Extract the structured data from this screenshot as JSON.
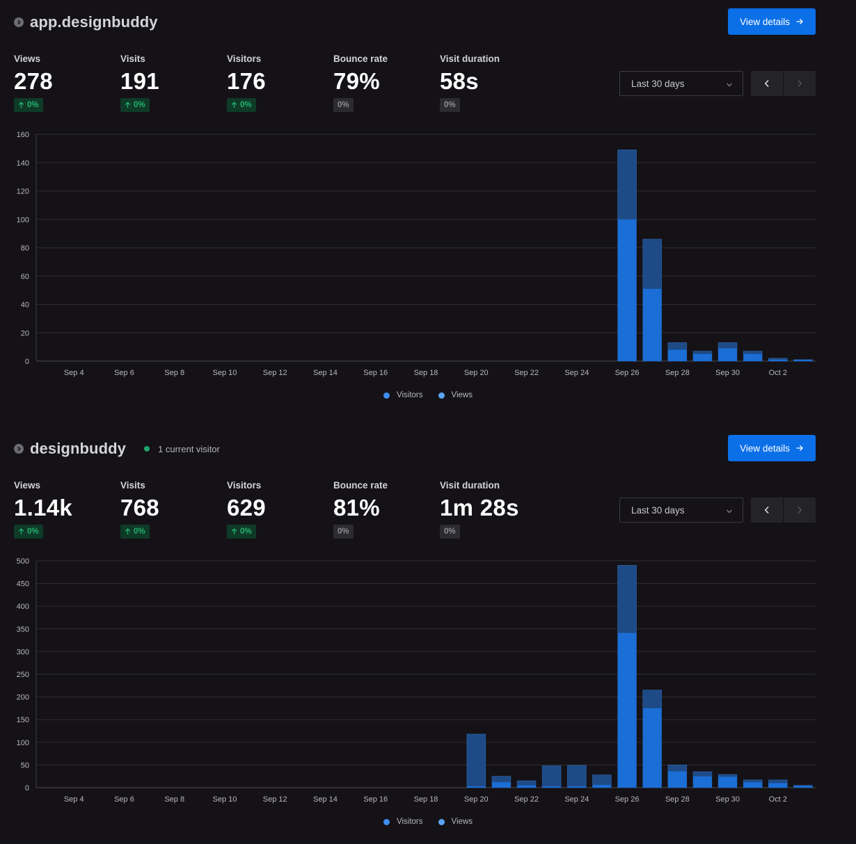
{
  "colors": {
    "accent": "#0b6fe8",
    "visitors": "#1a6ed6",
    "views": "#1e4a86",
    "positive": "#23b26d",
    "live": "#1fa36a"
  },
  "sites": [
    {
      "name": "app.designbuddy",
      "live_visitors": "",
      "view_details_label": "View details",
      "date_range": "Last 30 days",
      "stats": [
        {
          "label": "Views",
          "value": "278",
          "change": "0%",
          "trend": "up"
        },
        {
          "label": "Visits",
          "value": "191",
          "change": "0%",
          "trend": "up"
        },
        {
          "label": "Visitors",
          "value": "176",
          "change": "0%",
          "trend": "up"
        },
        {
          "label": "Bounce rate",
          "value": "79%",
          "change": "0%",
          "trend": "neutral"
        },
        {
          "label": "Visit duration",
          "value": "58s",
          "change": "0%",
          "trend": "neutral"
        }
      ],
      "legend": [
        "Visitors",
        "Views"
      ]
    },
    {
      "name": "designbuddy",
      "live_visitors": "1 current visitor",
      "view_details_label": "View details",
      "date_range": "Last 30 days",
      "stats": [
        {
          "label": "Views",
          "value": "1.14k",
          "change": "0%",
          "trend": "up"
        },
        {
          "label": "Visits",
          "value": "768",
          "change": "0%",
          "trend": "up"
        },
        {
          "label": "Visitors",
          "value": "629",
          "change": "0%",
          "trend": "up"
        },
        {
          "label": "Bounce rate",
          "value": "81%",
          "change": "0%",
          "trend": "neutral"
        },
        {
          "label": "Visit duration",
          "value": "1m 28s",
          "change": "0%",
          "trend": "neutral"
        }
      ],
      "legend": [
        "Visitors",
        "Views"
      ]
    }
  ],
  "chart_data": [
    {
      "type": "bar",
      "title": "app.designbuddy",
      "categories": [
        "Sep 3",
        "Sep 4",
        "Sep 5",
        "Sep 6",
        "Sep 7",
        "Sep 8",
        "Sep 9",
        "Sep 10",
        "Sep 11",
        "Sep 12",
        "Sep 13",
        "Sep 14",
        "Sep 15",
        "Sep 16",
        "Sep 17",
        "Sep 18",
        "Sep 19",
        "Sep 20",
        "Sep 21",
        "Sep 22",
        "Sep 23",
        "Sep 24",
        "Sep 25",
        "Sep 26",
        "Sep 27",
        "Sep 28",
        "Sep 29",
        "Sep 30",
        "Oct 1",
        "Oct 2",
        "Oct 3"
      ],
      "tick_labels": [
        "Sep 4",
        "Sep 6",
        "Sep 8",
        "Sep 10",
        "Sep 12",
        "Sep 14",
        "Sep 16",
        "Sep 18",
        "Sep 20",
        "Sep 22",
        "Sep 24",
        "Sep 26",
        "Sep 28",
        "Sep 30",
        "Oct 2"
      ],
      "series": [
        {
          "name": "Visitors",
          "values": [
            0,
            0,
            0,
            0,
            0,
            0,
            0,
            0,
            0,
            0,
            0,
            0,
            0,
            0,
            0,
            0,
            0,
            0,
            0,
            0,
            0,
            0,
            0,
            100,
            51,
            8,
            5,
            9,
            5,
            1,
            1
          ]
        },
        {
          "name": "Views",
          "values": [
            0,
            0,
            0,
            0,
            0,
            0,
            0,
            0,
            0,
            0,
            0,
            0,
            0,
            0,
            0,
            0,
            0,
            0,
            0,
            0,
            0,
            0,
            0,
            149,
            86,
            13,
            7,
            13,
            7,
            2,
            1
          ]
        }
      ],
      "ylim": [
        0,
        160
      ],
      "yticks": [
        0,
        20,
        40,
        60,
        80,
        100,
        120,
        140,
        160
      ],
      "legend_position": "bottom-center"
    },
    {
      "type": "bar",
      "title": "designbuddy",
      "categories": [
        "Sep 3",
        "Sep 4",
        "Sep 5",
        "Sep 6",
        "Sep 7",
        "Sep 8",
        "Sep 9",
        "Sep 10",
        "Sep 11",
        "Sep 12",
        "Sep 13",
        "Sep 14",
        "Sep 15",
        "Sep 16",
        "Sep 17",
        "Sep 18",
        "Sep 19",
        "Sep 20",
        "Sep 21",
        "Sep 22",
        "Sep 23",
        "Sep 24",
        "Sep 25",
        "Sep 26",
        "Sep 27",
        "Sep 28",
        "Sep 29",
        "Sep 30",
        "Oct 1",
        "Oct 2",
        "Oct 3"
      ],
      "tick_labels": [
        "Sep 4",
        "Sep 6",
        "Sep 8",
        "Sep 10",
        "Sep 12",
        "Sep 14",
        "Sep 16",
        "Sep 18",
        "Sep 20",
        "Sep 22",
        "Sep 24",
        "Sep 26",
        "Sep 28",
        "Sep 30",
        "Oct 2"
      ],
      "series": [
        {
          "name": "Visitors",
          "values": [
            0,
            0,
            0,
            0,
            0,
            0,
            0,
            0,
            0,
            0,
            0,
            0,
            0,
            0,
            0,
            0,
            0,
            3,
            12,
            5,
            3,
            3,
            6,
            341,
            175,
            36,
            25,
            24,
            12,
            10,
            4
          ]
        },
        {
          "name": "Views",
          "values": [
            0,
            0,
            0,
            0,
            0,
            0,
            0,
            0,
            0,
            0,
            0,
            0,
            0,
            0,
            0,
            0,
            0,
            118,
            25,
            15,
            48,
            49,
            28,
            490,
            215,
            50,
            35,
            29,
            17,
            17,
            5
          ]
        }
      ],
      "ylim": [
        0,
        500
      ],
      "yticks": [
        0,
        50,
        100,
        150,
        200,
        250,
        300,
        350,
        400,
        450,
        500
      ],
      "legend_position": "bottom-center"
    }
  ]
}
